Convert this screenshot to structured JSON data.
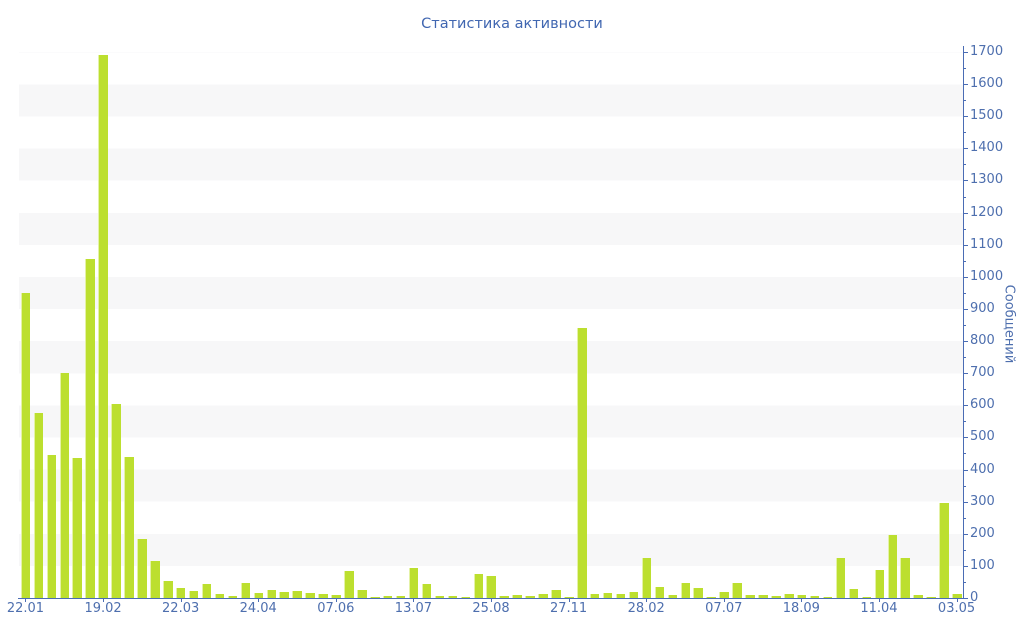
{
  "chart": {
    "title": "Статистика активности",
    "y_axis_title": "Сообщений"
  },
  "chart_data": {
    "type": "bar",
    "title": "Статистика активности",
    "xlabel": "",
    "ylabel": "Сообщений",
    "legend": "none",
    "grid": "alternating light-gray horizontal bands every 100 units",
    "ylim": [
      0,
      1700
    ],
    "y_major_step": 100,
    "y_minor_step": 50,
    "y_tick_labels": [
      0,
      100,
      200,
      300,
      400,
      500,
      600,
      700,
      800,
      900,
      1000,
      1100,
      1200,
      1300,
      1400,
      1500,
      1600,
      1700
    ],
    "x_tick_labels": [
      "22.01",
      "19.02",
      "22.03",
      "24.04",
      "07.06",
      "13.07",
      "25.08",
      "27.11",
      "28.02",
      "07.07",
      "18.09",
      "11.04",
      "03.05"
    ],
    "label_every_n_bars": 6,
    "values": [
      950,
      575,
      445,
      700,
      435,
      1055,
      1690,
      605,
      440,
      185,
      115,
      54,
      31,
      22,
      45,
      13,
      7,
      47,
      17,
      25,
      20,
      22,
      15,
      14,
      8,
      85,
      25,
      4,
      7,
      7,
      95,
      44,
      7,
      7,
      4,
      75,
      70,
      5,
      10,
      5,
      11,
      25,
      2,
      840,
      13,
      15,
      13,
      20,
      124,
      34,
      8,
      47,
      31,
      4,
      18,
      47,
      8,
      8,
      6,
      12,
      10,
      6,
      2,
      124,
      28,
      4,
      88,
      195,
      124,
      9,
      4,
      297,
      12
    ],
    "colors": {
      "bar": "#bcdf2f",
      "bar_highlight": "#e4f2a6",
      "axis": "#4a6cb4",
      "tick_label": "#4e6fae",
      "title": "#4167b1",
      "band": "#f7f7f8",
      "background": "#ffffff"
    }
  }
}
